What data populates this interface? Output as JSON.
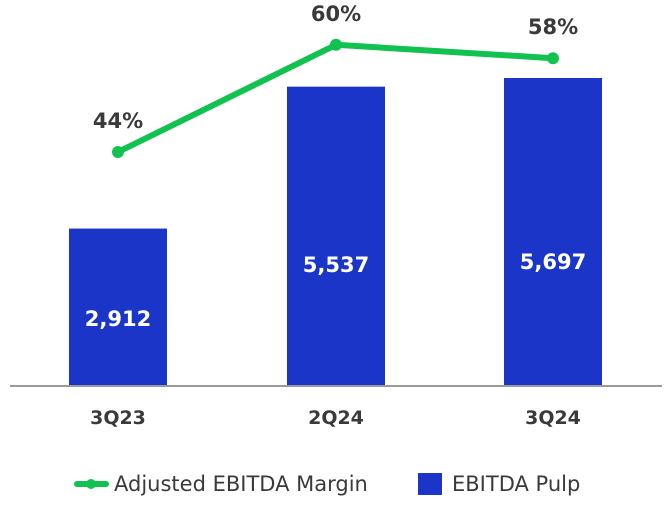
{
  "chart_data": {
    "type": "bar",
    "categories": [
      "3Q23",
      "2Q24",
      "3Q24"
    ],
    "series": [
      {
        "name": "EBITDA Pulp",
        "type": "bar",
        "color": "#1a35c8",
        "values": [
          2912,
          5537,
          5697
        ],
        "labels": [
          "2,912",
          "5,537",
          "5,697"
        ]
      },
      {
        "name": "Adjusted EBITDA Margin",
        "type": "line",
        "color": "#12c250",
        "values": [
          44,
          60,
          58
        ],
        "labels": [
          "44%",
          "60%",
          "58%"
        ]
      }
    ],
    "legend": {
      "position": "bottom",
      "entries": [
        "Adjusted EBITDA Margin",
        "EBITDA Pulp"
      ]
    },
    "grid": false
  }
}
